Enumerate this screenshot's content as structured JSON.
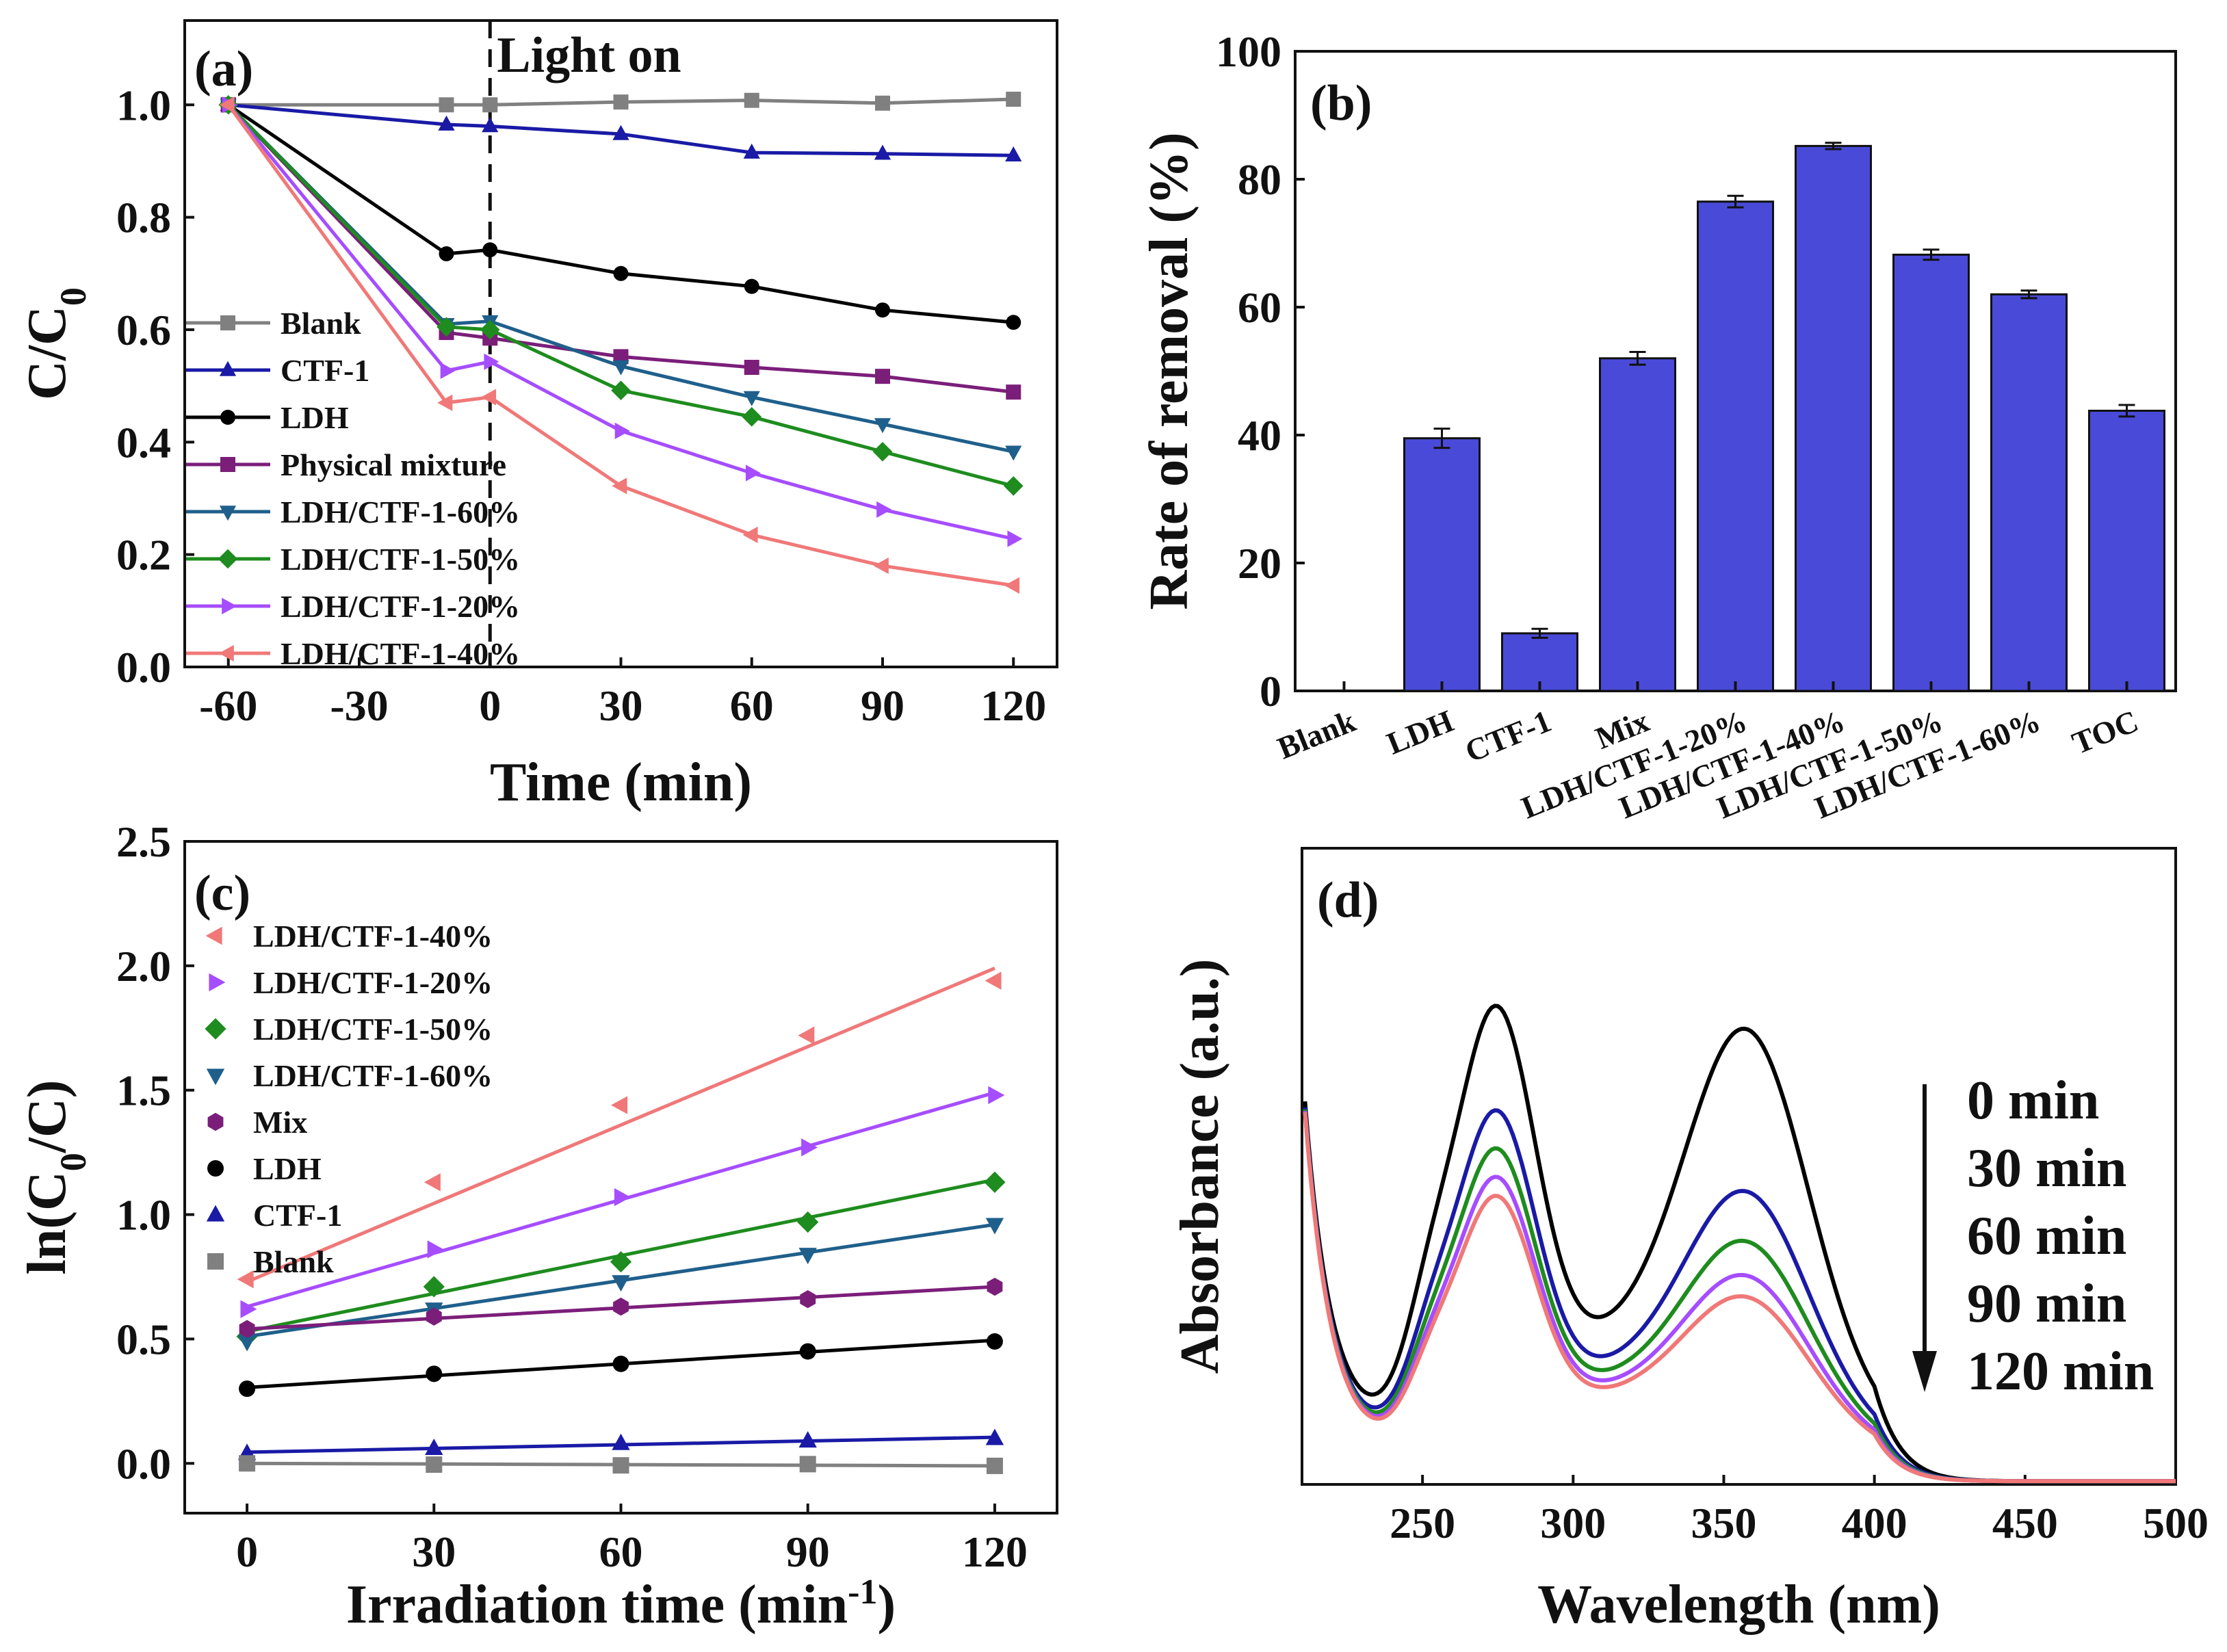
{
  "chart_data": [
    {
      "panel": "(a)",
      "type": "line",
      "annotation": "Light on",
      "xlabel": "Time (min)",
      "ylabel": "C/C0",
      "xlim": [
        -70,
        130
      ],
      "ylim": [
        0,
        1.15
      ],
      "xticks": [
        -60,
        -30,
        0,
        30,
        60,
        90,
        120
      ],
      "yticks": [
        0.0,
        0.2,
        0.4,
        0.6,
        0.8,
        1.0
      ],
      "x": [
        -60,
        -10,
        0,
        30,
        60,
        90,
        120
      ],
      "legend_position": "left",
      "series": [
        {
          "name": "Blank",
          "color": "#808080",
          "marker": "square",
          "values": [
            1.0,
            1.0,
            1.0,
            1.005,
            1.008,
            1.003,
            1.01
          ]
        },
        {
          "name": "CTF-1",
          "color": "#1a1aa6",
          "marker": "triangle-up",
          "values": [
            1.0,
            0.965,
            0.962,
            0.948,
            0.915,
            0.913,
            0.91
          ]
        },
        {
          "name": "LDH",
          "color": "#000000",
          "marker": "circle",
          "values": [
            1.0,
            0.735,
            0.742,
            0.7,
            0.677,
            0.635,
            0.613
          ]
        },
        {
          "name": "Physical mixture",
          "color": "#7b1e7a",
          "marker": "square",
          "values": [
            1.0,
            0.595,
            0.585,
            0.552,
            0.533,
            0.517,
            0.489
          ]
        },
        {
          "name": "LDH/CTF-1-60%",
          "color": "#1f5f8b",
          "marker": "triangle-down",
          "values": [
            1.0,
            0.61,
            0.615,
            0.535,
            0.48,
            0.432,
            0.383
          ]
        },
        {
          "name": "LDH/CTF-1-50%",
          "color": "#1e8c1e",
          "marker": "diamond",
          "values": [
            1.0,
            0.605,
            0.6,
            0.492,
            0.445,
            0.383,
            0.322
          ]
        },
        {
          "name": "LDH/CTF-1-20%",
          "color": "#a64dff",
          "marker": "triangle-right",
          "values": [
            1.0,
            0.527,
            0.543,
            0.42,
            0.345,
            0.28,
            0.228
          ]
        },
        {
          "name": "LDH/CTF-1-40%",
          "color": "#f07878",
          "marker": "triangle-left",
          "values": [
            1.0,
            0.47,
            0.48,
            0.322,
            0.235,
            0.18,
            0.145
          ]
        }
      ]
    },
    {
      "panel": "(b)",
      "type": "bar",
      "xlabel": "",
      "ylabel": "Rate of removal (%)",
      "ylim": [
        0,
        100
      ],
      "yticks": [
        0,
        20,
        40,
        60,
        80,
        100
      ],
      "bar_color": "#4a4ad8",
      "categories": [
        "Blank",
        "LDH",
        "CTF-1",
        "Mix",
        "LDH/CTF-1-20%",
        "LDH/CTF-1-40%",
        "LDH/CTF-1-50%",
        "LDH/CTF-1-60%",
        "TOC"
      ],
      "values": [
        0,
        39.5,
        9.0,
        52.0,
        76.5,
        85.2,
        68.2,
        62.0,
        43.8
      ],
      "errors": [
        0,
        1.5,
        0.7,
        1.0,
        0.9,
        0.5,
        0.8,
        0.6,
        0.9
      ]
    },
    {
      "panel": "(c)",
      "type": "scatter",
      "xlabel": "Irradiation time (min-1)",
      "ylabel": "ln(C0/C)",
      "xlim": [
        -10,
        130
      ],
      "ylim": [
        -0.2,
        2.5
      ],
      "xticks": [
        0,
        30,
        60,
        90,
        120
      ],
      "yticks": [
        0.0,
        0.5,
        1.0,
        1.5,
        2.0,
        2.5
      ],
      "x": [
        0,
        30,
        60,
        90,
        120
      ],
      "legend_position": "top-left",
      "series": [
        {
          "name": "LDH/CTF-1-40%",
          "color": "#f07878",
          "marker": "triangle-left",
          "values": [
            0.74,
            1.13,
            1.44,
            1.72,
            1.94
          ],
          "fit": [
            0.73,
            1.99
          ]
        },
        {
          "name": "LDH/CTF-1-20%",
          "color": "#a64dff",
          "marker": "triangle-right",
          "values": [
            0.62,
            0.86,
            1.07,
            1.27,
            1.48
          ],
          "fit": [
            0.63,
            1.49
          ]
        },
        {
          "name": "LDH/CTF-1-50%",
          "color": "#1e8c1e",
          "marker": "diamond",
          "values": [
            0.51,
            0.71,
            0.81,
            0.97,
            1.13
          ],
          "fit": [
            0.53,
            1.14
          ]
        },
        {
          "name": "LDH/CTF-1-60%",
          "color": "#1f5f8b",
          "marker": "triangle-down",
          "values": [
            0.49,
            0.62,
            0.73,
            0.84,
            0.96
          ],
          "fit": [
            0.51,
            0.96
          ]
        },
        {
          "name": "Mix",
          "color": "#7b1e7a",
          "marker": "hexagon",
          "values": [
            0.54,
            0.59,
            0.63,
            0.66,
            0.71
          ],
          "fit": [
            0.54,
            0.71
          ]
        },
        {
          "name": "LDH",
          "color": "#000000",
          "marker": "circle",
          "values": [
            0.3,
            0.36,
            0.4,
            0.45,
            0.49
          ],
          "fit": [
            0.305,
            0.495
          ]
        },
        {
          "name": "CTF-1",
          "color": "#1a1aa6",
          "marker": "triangle-up",
          "values": [
            0.04,
            0.06,
            0.08,
            0.09,
            0.1
          ],
          "fit": [
            0.045,
            0.105
          ]
        },
        {
          "name": "Blank",
          "color": "#808080",
          "marker": "square",
          "values": [
            0.0,
            -0.005,
            -0.008,
            -0.003,
            -0.01
          ],
          "fit": [
            0.0,
            -0.01
          ]
        }
      ]
    },
    {
      "panel": "(d)",
      "type": "line",
      "xlabel": "Wavelength (nm)",
      "ylabel": "Absorbance (a.u.)",
      "xlim": [
        210,
        500
      ],
      "ylim": [
        0,
        1
      ],
      "xticks": [
        250,
        300,
        350,
        400,
        450,
        500
      ],
      "legend_position": "right",
      "annotation_arrow": "down",
      "series": [
        {
          "name": "0 min",
          "color": "#000000",
          "scale": 1.0
        },
        {
          "name": "30 min",
          "color": "#1a1aa6",
          "scale": 0.78
        },
        {
          "name": "60 min",
          "color": "#1e8c1e",
          "scale": 0.7
        },
        {
          "name": "90 min",
          "color": "#a64dff",
          "scale": 0.64
        },
        {
          "name": "120 min",
          "color": "#f07878",
          "scale": 0.6
        }
      ]
    }
  ]
}
